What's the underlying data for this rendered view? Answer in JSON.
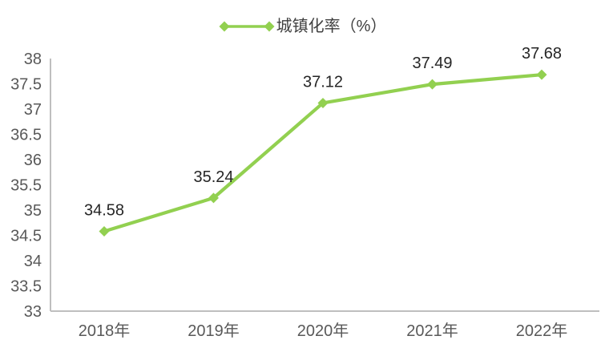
{
  "chart_data": {
    "type": "line",
    "title": "",
    "legend": {
      "label": "城镇化率（%）",
      "position": "top"
    },
    "categories": [
      "2018年",
      "2019年",
      "2020年",
      "2021年",
      "2022年"
    ],
    "series": [
      {
        "name": "城镇化率（%）",
        "values": [
          34.58,
          35.24,
          37.12,
          37.49,
          37.68
        ]
      }
    ],
    "data_labels": [
      "34.58",
      "35.24",
      "37.12",
      "37.49",
      "37.68"
    ],
    "xlabel": "",
    "ylabel": "",
    "ylim": [
      33,
      38
    ],
    "ytick_step": 0.5,
    "ytick_labels": [
      "33",
      "33.5",
      "34",
      "34.5",
      "35",
      "35.5",
      "36",
      "36.5",
      "37",
      "37.5",
      "38"
    ],
    "grid": false,
    "marker": "diamond",
    "colors": {
      "series": "#92D050",
      "axis_line": "#BFBFBF",
      "tick_label": "#595959",
      "data_label": "#262626",
      "legend_text": "#404040",
      "background": "#FFFFFF"
    }
  }
}
